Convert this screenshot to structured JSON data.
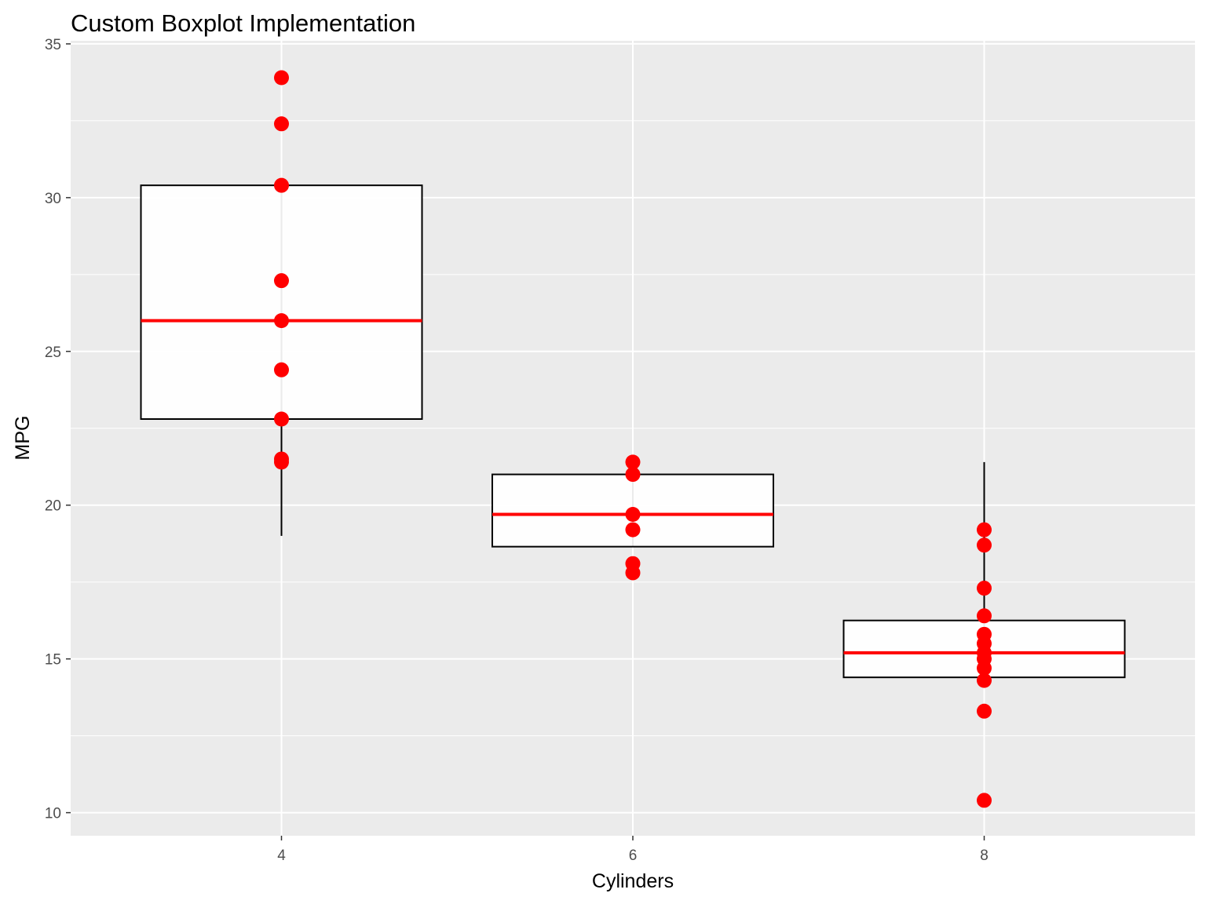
{
  "chart_data": {
    "type": "boxplot",
    "title": "Custom Boxplot Implementation",
    "xlabel": "Cylinders",
    "ylabel": "MPG",
    "categories": [
      "4",
      "6",
      "8"
    ],
    "x_ticks": [
      "4",
      "6",
      "8"
    ],
    "y_ticks": [
      10,
      15,
      20,
      25,
      30,
      35
    ],
    "y_tick_labels": [
      "10",
      "15",
      "20",
      "25",
      "30",
      "35"
    ],
    "ylim": [
      9.25,
      35.1
    ],
    "xlim": [
      2.8,
      9.2
    ],
    "grid": true,
    "colors": {
      "panel_background": "#ebebeb",
      "grid": "#ffffff",
      "box_fill": "#ffffff",
      "box_outline": "#000000",
      "median": "#ff0000",
      "points": "#ff0000",
      "tick_text": "#4d4d4d",
      "tick_mark": "#333333"
    },
    "boxes": [
      {
        "x": 4,
        "lower": 22.8,
        "upper": 30.4,
        "median": 26.0,
        "whisker_low": 19.0,
        "whisker_high": 30.4
      },
      {
        "x": 6,
        "lower": 18.65,
        "upper": 21.0,
        "median": 19.7,
        "whisker_low": 18.65,
        "whisker_high": 21.0
      },
      {
        "x": 8,
        "lower": 14.4,
        "upper": 16.25,
        "median": 15.2,
        "whisker_low": 14.4,
        "whisker_high": 21.4
      }
    ],
    "points": [
      {
        "x": 4,
        "y": [
          33.9,
          32.4,
          30.4,
          27.3,
          26.0,
          24.4,
          22.8,
          21.5,
          21.4
        ]
      },
      {
        "x": 6,
        "y": [
          21.4,
          21.0,
          19.7,
          19.2,
          18.1,
          17.8
        ]
      },
      {
        "x": 8,
        "y": [
          19.2,
          18.7,
          17.3,
          16.4,
          15.8,
          15.5,
          15.2,
          15.0,
          14.7,
          14.3,
          13.3,
          10.4
        ]
      }
    ]
  }
}
